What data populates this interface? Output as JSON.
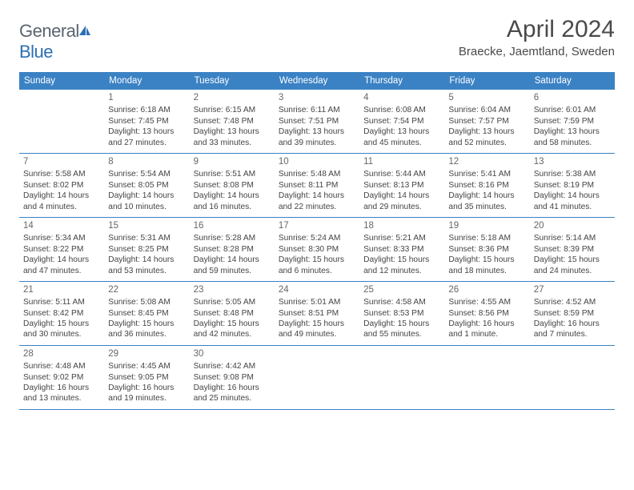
{
  "logo": {
    "text_gray": "General",
    "text_blue": "Blue"
  },
  "title": "April 2024",
  "location": "Braecke, Jaemtland, Sweden",
  "colors": {
    "header_bg": "#3b82c4",
    "header_text": "#ffffff",
    "border": "#3b82c4",
    "body_text": "#444444",
    "daynum_text": "#666666",
    "logo_gray": "#5a6570",
    "logo_blue": "#2d6fb5",
    "background": "#ffffff"
  },
  "weekdays": [
    "Sunday",
    "Monday",
    "Tuesday",
    "Wednesday",
    "Thursday",
    "Friday",
    "Saturday"
  ],
  "weeks": [
    [
      {
        "num": "",
        "sunrise": "",
        "sunset": "",
        "daylight": ""
      },
      {
        "num": "1",
        "sunrise": "Sunrise: 6:18 AM",
        "sunset": "Sunset: 7:45 PM",
        "daylight": "Daylight: 13 hours and 27 minutes."
      },
      {
        "num": "2",
        "sunrise": "Sunrise: 6:15 AM",
        "sunset": "Sunset: 7:48 PM",
        "daylight": "Daylight: 13 hours and 33 minutes."
      },
      {
        "num": "3",
        "sunrise": "Sunrise: 6:11 AM",
        "sunset": "Sunset: 7:51 PM",
        "daylight": "Daylight: 13 hours and 39 minutes."
      },
      {
        "num": "4",
        "sunrise": "Sunrise: 6:08 AM",
        "sunset": "Sunset: 7:54 PM",
        "daylight": "Daylight: 13 hours and 45 minutes."
      },
      {
        "num": "5",
        "sunrise": "Sunrise: 6:04 AM",
        "sunset": "Sunset: 7:57 PM",
        "daylight": "Daylight: 13 hours and 52 minutes."
      },
      {
        "num": "6",
        "sunrise": "Sunrise: 6:01 AM",
        "sunset": "Sunset: 7:59 PM",
        "daylight": "Daylight: 13 hours and 58 minutes."
      }
    ],
    [
      {
        "num": "7",
        "sunrise": "Sunrise: 5:58 AM",
        "sunset": "Sunset: 8:02 PM",
        "daylight": "Daylight: 14 hours and 4 minutes."
      },
      {
        "num": "8",
        "sunrise": "Sunrise: 5:54 AM",
        "sunset": "Sunset: 8:05 PM",
        "daylight": "Daylight: 14 hours and 10 minutes."
      },
      {
        "num": "9",
        "sunrise": "Sunrise: 5:51 AM",
        "sunset": "Sunset: 8:08 PM",
        "daylight": "Daylight: 14 hours and 16 minutes."
      },
      {
        "num": "10",
        "sunrise": "Sunrise: 5:48 AM",
        "sunset": "Sunset: 8:11 PM",
        "daylight": "Daylight: 14 hours and 22 minutes."
      },
      {
        "num": "11",
        "sunrise": "Sunrise: 5:44 AM",
        "sunset": "Sunset: 8:13 PM",
        "daylight": "Daylight: 14 hours and 29 minutes."
      },
      {
        "num": "12",
        "sunrise": "Sunrise: 5:41 AM",
        "sunset": "Sunset: 8:16 PM",
        "daylight": "Daylight: 14 hours and 35 minutes."
      },
      {
        "num": "13",
        "sunrise": "Sunrise: 5:38 AM",
        "sunset": "Sunset: 8:19 PM",
        "daylight": "Daylight: 14 hours and 41 minutes."
      }
    ],
    [
      {
        "num": "14",
        "sunrise": "Sunrise: 5:34 AM",
        "sunset": "Sunset: 8:22 PM",
        "daylight": "Daylight: 14 hours and 47 minutes."
      },
      {
        "num": "15",
        "sunrise": "Sunrise: 5:31 AM",
        "sunset": "Sunset: 8:25 PM",
        "daylight": "Daylight: 14 hours and 53 minutes."
      },
      {
        "num": "16",
        "sunrise": "Sunrise: 5:28 AM",
        "sunset": "Sunset: 8:28 PM",
        "daylight": "Daylight: 14 hours and 59 minutes."
      },
      {
        "num": "17",
        "sunrise": "Sunrise: 5:24 AM",
        "sunset": "Sunset: 8:30 PM",
        "daylight": "Daylight: 15 hours and 6 minutes."
      },
      {
        "num": "18",
        "sunrise": "Sunrise: 5:21 AM",
        "sunset": "Sunset: 8:33 PM",
        "daylight": "Daylight: 15 hours and 12 minutes."
      },
      {
        "num": "19",
        "sunrise": "Sunrise: 5:18 AM",
        "sunset": "Sunset: 8:36 PM",
        "daylight": "Daylight: 15 hours and 18 minutes."
      },
      {
        "num": "20",
        "sunrise": "Sunrise: 5:14 AM",
        "sunset": "Sunset: 8:39 PM",
        "daylight": "Daylight: 15 hours and 24 minutes."
      }
    ],
    [
      {
        "num": "21",
        "sunrise": "Sunrise: 5:11 AM",
        "sunset": "Sunset: 8:42 PM",
        "daylight": "Daylight: 15 hours and 30 minutes."
      },
      {
        "num": "22",
        "sunrise": "Sunrise: 5:08 AM",
        "sunset": "Sunset: 8:45 PM",
        "daylight": "Daylight: 15 hours and 36 minutes."
      },
      {
        "num": "23",
        "sunrise": "Sunrise: 5:05 AM",
        "sunset": "Sunset: 8:48 PM",
        "daylight": "Daylight: 15 hours and 42 minutes."
      },
      {
        "num": "24",
        "sunrise": "Sunrise: 5:01 AM",
        "sunset": "Sunset: 8:51 PM",
        "daylight": "Daylight: 15 hours and 49 minutes."
      },
      {
        "num": "25",
        "sunrise": "Sunrise: 4:58 AM",
        "sunset": "Sunset: 8:53 PM",
        "daylight": "Daylight: 15 hours and 55 minutes."
      },
      {
        "num": "26",
        "sunrise": "Sunrise: 4:55 AM",
        "sunset": "Sunset: 8:56 PM",
        "daylight": "Daylight: 16 hours and 1 minute."
      },
      {
        "num": "27",
        "sunrise": "Sunrise: 4:52 AM",
        "sunset": "Sunset: 8:59 PM",
        "daylight": "Daylight: 16 hours and 7 minutes."
      }
    ],
    [
      {
        "num": "28",
        "sunrise": "Sunrise: 4:48 AM",
        "sunset": "Sunset: 9:02 PM",
        "daylight": "Daylight: 16 hours and 13 minutes."
      },
      {
        "num": "29",
        "sunrise": "Sunrise: 4:45 AM",
        "sunset": "Sunset: 9:05 PM",
        "daylight": "Daylight: 16 hours and 19 minutes."
      },
      {
        "num": "30",
        "sunrise": "Sunrise: 4:42 AM",
        "sunset": "Sunset: 9:08 PM",
        "daylight": "Daylight: 16 hours and 25 minutes."
      },
      {
        "num": "",
        "sunrise": "",
        "sunset": "",
        "daylight": ""
      },
      {
        "num": "",
        "sunrise": "",
        "sunset": "",
        "daylight": ""
      },
      {
        "num": "",
        "sunrise": "",
        "sunset": "",
        "daylight": ""
      },
      {
        "num": "",
        "sunrise": "",
        "sunset": "",
        "daylight": ""
      }
    ]
  ]
}
